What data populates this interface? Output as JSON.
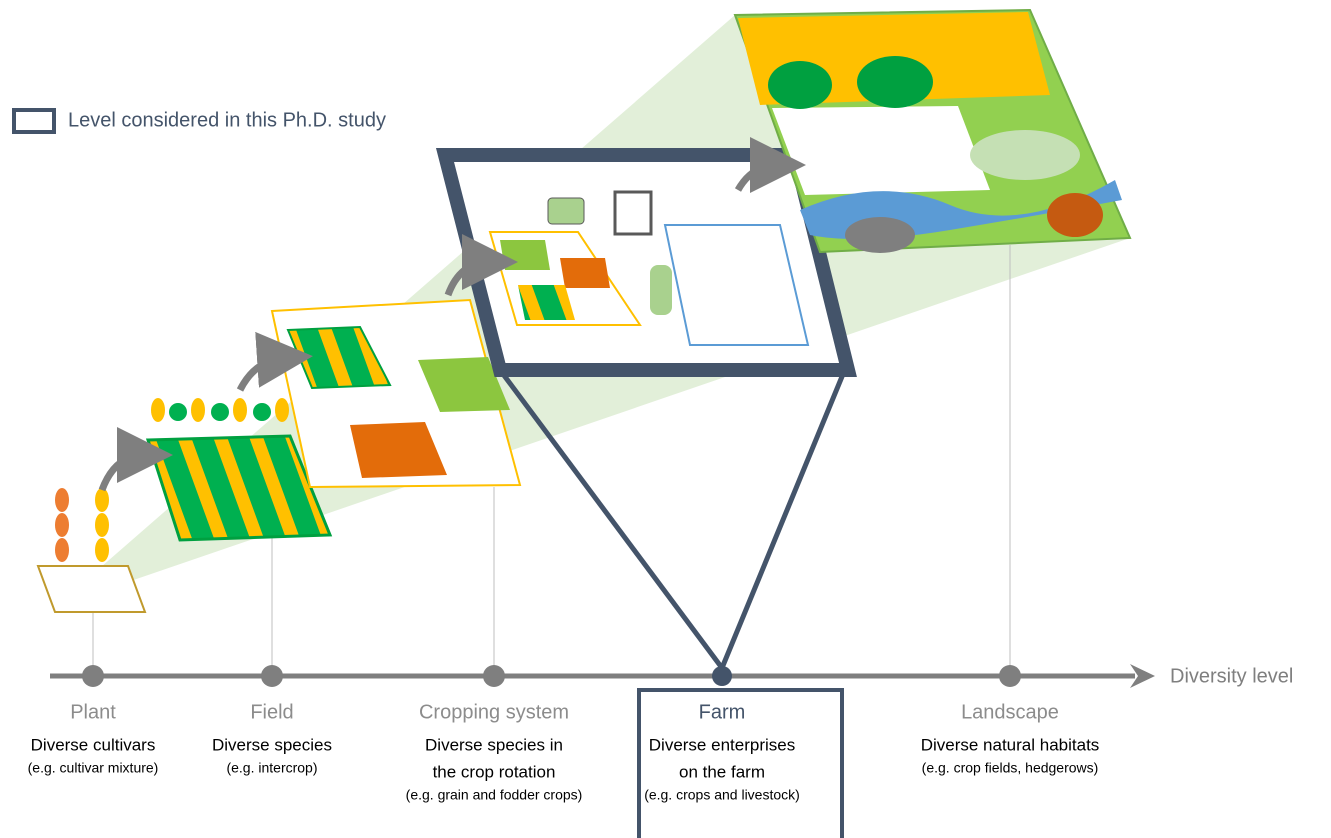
{
  "legend": "Level considered in this Ph.D. study",
  "axis_label": "Diversity level",
  "levels": [
    {
      "name": "Plant",
      "description": [
        "Diverse cultivars"
      ],
      "example": "(e.g. cultivar mixture)"
    },
    {
      "name": "Field",
      "description": [
        "Diverse species"
      ],
      "example": "(e.g. intercrop)"
    },
    {
      "name": "Cropping system",
      "description": [
        "Diverse species in",
        "the crop rotation"
      ],
      "example": "(e.g. grain and fodder crops)"
    },
    {
      "name": "Farm",
      "description": [
        "Diverse enterprises",
        "on the farm"
      ],
      "example": "(e.g. crops and livestock)"
    },
    {
      "name": "Landscape",
      "description": [
        "Diverse natural habitats"
      ],
      "example": "(e.g. crop fields, hedgerows)"
    }
  ]
}
